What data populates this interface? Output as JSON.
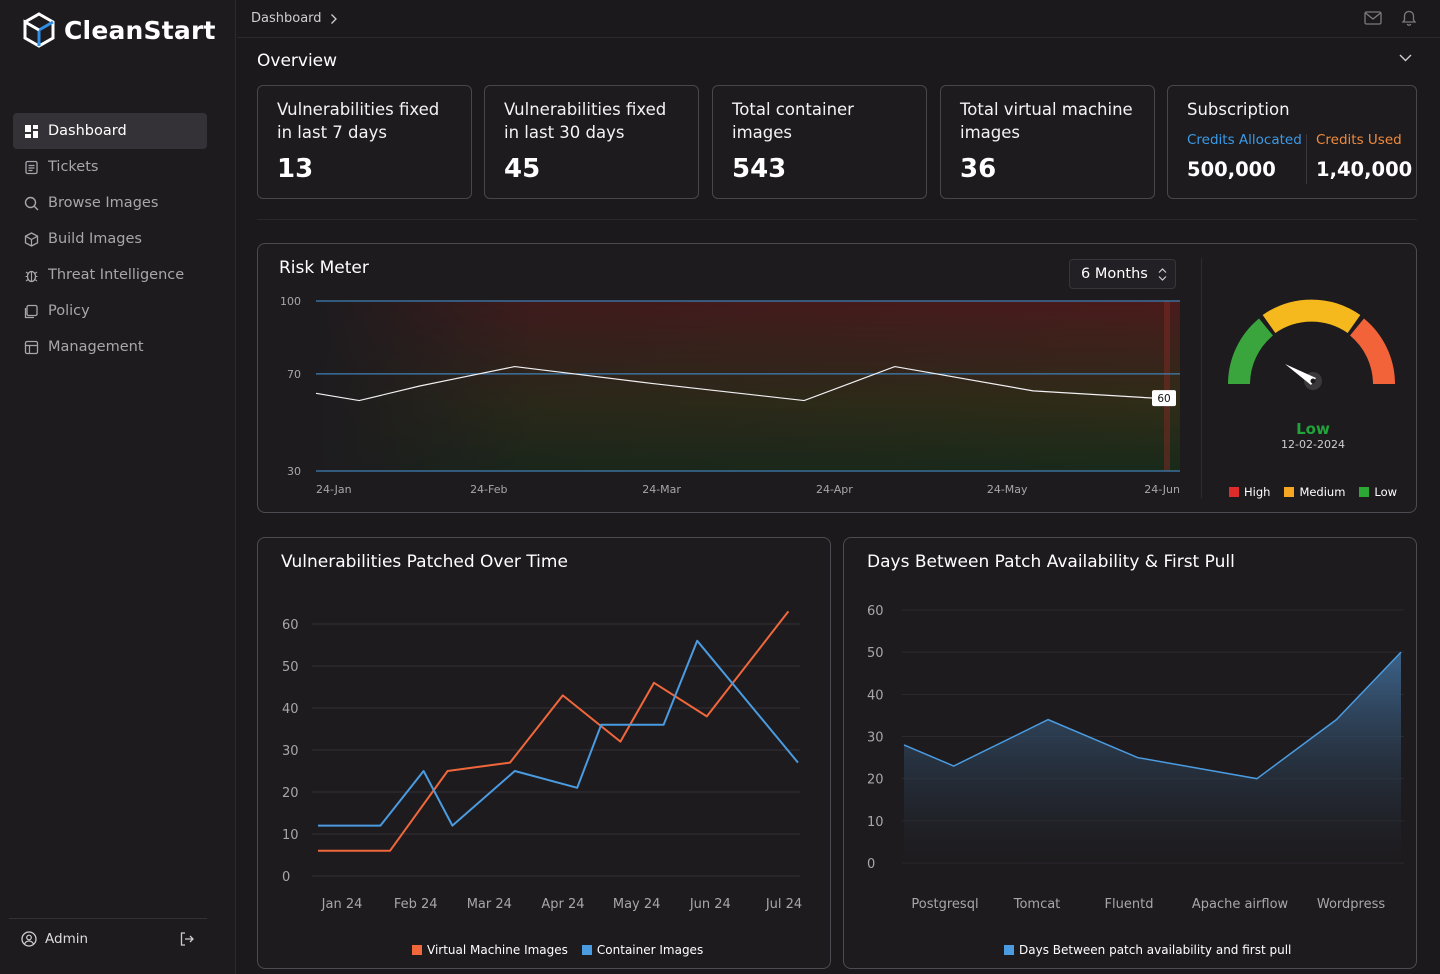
{
  "brand": {
    "name": "CleanStart"
  },
  "sidebar": {
    "items": [
      {
        "label": "Dashboard",
        "icon": "dashboard-icon",
        "active": true
      },
      {
        "label": "Tickets",
        "icon": "ticket-icon",
        "active": false
      },
      {
        "label": "Browse Images",
        "icon": "search-icon",
        "active": false
      },
      {
        "label": "Build Images",
        "icon": "cube-icon",
        "active": false
      },
      {
        "label": "Threat Intelligence",
        "icon": "bug-icon",
        "active": false
      },
      {
        "label": "Policy",
        "icon": "document-icon",
        "active": false
      },
      {
        "label": "Management",
        "icon": "management-icon",
        "active": false
      }
    ],
    "user": {
      "label": "Admin"
    }
  },
  "header": {
    "breadcrumb": "Dashboard"
  },
  "overview": {
    "title": "Overview",
    "cards": [
      {
        "title": "Vulnerabilities fixed in last 7 days",
        "value": "13"
      },
      {
        "title": "Vulnerabilities fixed in last 30 days",
        "value": "45"
      },
      {
        "title": "Total container images",
        "value": "543"
      },
      {
        "title": "Total virtual machine images",
        "value": "36"
      }
    ],
    "subscription": {
      "title": "Subscription",
      "allocated_label": "Credits Allocated",
      "allocated_value": "500,000",
      "used_label": "Credits Used",
      "used_value": "1,40,000",
      "allocated_color": "#3b9be8",
      "used_color": "#f08a3c"
    }
  },
  "risk_meter": {
    "title": "Risk Meter",
    "period": "6 Months",
    "gauge": {
      "status": "Low",
      "date": "12-02-2024",
      "status_color": "#22a33a"
    },
    "legend": [
      {
        "label": "High",
        "color": "#e02b2b"
      },
      {
        "label": "Medium",
        "color": "#f5a623"
      },
      {
        "label": "Low",
        "color": "#2ca834"
      }
    ]
  },
  "vuln_chart": {
    "title": "Vulnerabilities Patched Over Time",
    "legend": [
      {
        "label": "Virtual Machine Images",
        "color": "#f0673c"
      },
      {
        "label": "Container Images",
        "color": "#4a9be0"
      }
    ]
  },
  "days_chart": {
    "title": "Days Between Patch Availability & First Pull",
    "legend_label": "Days Between patch availability and first pull",
    "legend_color": "#4a9be0"
  },
  "chart_data": [
    {
      "type": "line",
      "title": "Risk Meter",
      "x": [
        "24-Jan",
        "24-Feb",
        "24-Mar",
        "24-Apr",
        "24-May",
        "24-Jun"
      ],
      "yticks": [
        30,
        70,
        100
      ],
      "ylim": [
        30,
        100
      ],
      "series": [
        {
          "values": [
            {
              "x": 0.0,
              "y": 62
            },
            {
              "x": 0.05,
              "y": 59
            },
            {
              "x": 0.12,
              "y": 65
            },
            {
              "x": 0.23,
              "y": 73
            },
            {
              "x": 0.39,
              "y": 66
            },
            {
              "x": 0.565,
              "y": 59
            },
            {
              "x": 0.67,
              "y": 73
            },
            {
              "x": 0.83,
              "y": 63
            },
            {
              "x": 0.97,
              "y": 60
            }
          ]
        }
      ],
      "annotations": [
        {
          "label": "60",
          "y": 60
        }
      ]
    },
    {
      "type": "line",
      "title": "Vulnerabilities Patched Over Time",
      "categories": [
        "Jan 24",
        "Feb 24",
        "Mar 24",
        "Apr 24",
        "May 24",
        "Jun 24",
        "Jul 24"
      ],
      "yticks": [
        0,
        10,
        20,
        30,
        40,
        50,
        60
      ],
      "ylim": [
        0,
        60
      ],
      "series": [
        {
          "name": "Virtual Machine Images",
          "values": [
            {
              "x": 0.0,
              "y": 6
            },
            {
              "x": 0.15,
              "y": 6
            },
            {
              "x": 0.27,
              "y": 25
            },
            {
              "x": 0.4,
              "y": 27
            },
            {
              "x": 0.51,
              "y": 43
            },
            {
              "x": 0.63,
              "y": 32
            },
            {
              "x": 0.7,
              "y": 46
            },
            {
              "x": 0.81,
              "y": 38
            },
            {
              "x": 0.98,
              "y": 63
            }
          ]
        },
        {
          "name": "Container Images",
          "values": [
            {
              "x": 0.0,
              "y": 12
            },
            {
              "x": 0.13,
              "y": 12
            },
            {
              "x": 0.22,
              "y": 25
            },
            {
              "x": 0.28,
              "y": 12
            },
            {
              "x": 0.41,
              "y": 25
            },
            {
              "x": 0.54,
              "y": 21
            },
            {
              "x": 0.59,
              "y": 36
            },
            {
              "x": 0.72,
              "y": 36
            },
            {
              "x": 0.79,
              "y": 56
            },
            {
              "x": 1.0,
              "y": 27
            }
          ]
        }
      ]
    },
    {
      "type": "area",
      "title": "Days Between Patch Availability & First Pull",
      "categories": [
        "Postgresql",
        "Tomcat",
        "Fluentd",
        "Apache airflow",
        "Wordpress"
      ],
      "yticks": [
        0,
        10,
        20,
        30,
        40,
        50,
        60
      ],
      "ylim": [
        0,
        60
      ],
      "series": [
        {
          "name": "Days Between patch availability and first pull",
          "values": [
            {
              "x": 0.0,
              "y": 28
            },
            {
              "x": 0.1,
              "y": 23
            },
            {
              "x": 0.29,
              "y": 34
            },
            {
              "x": 0.47,
              "y": 25
            },
            {
              "x": 0.71,
              "y": 20
            },
            {
              "x": 0.87,
              "y": 34
            },
            {
              "x": 1.0,
              "y": 50
            }
          ]
        }
      ]
    }
  ]
}
